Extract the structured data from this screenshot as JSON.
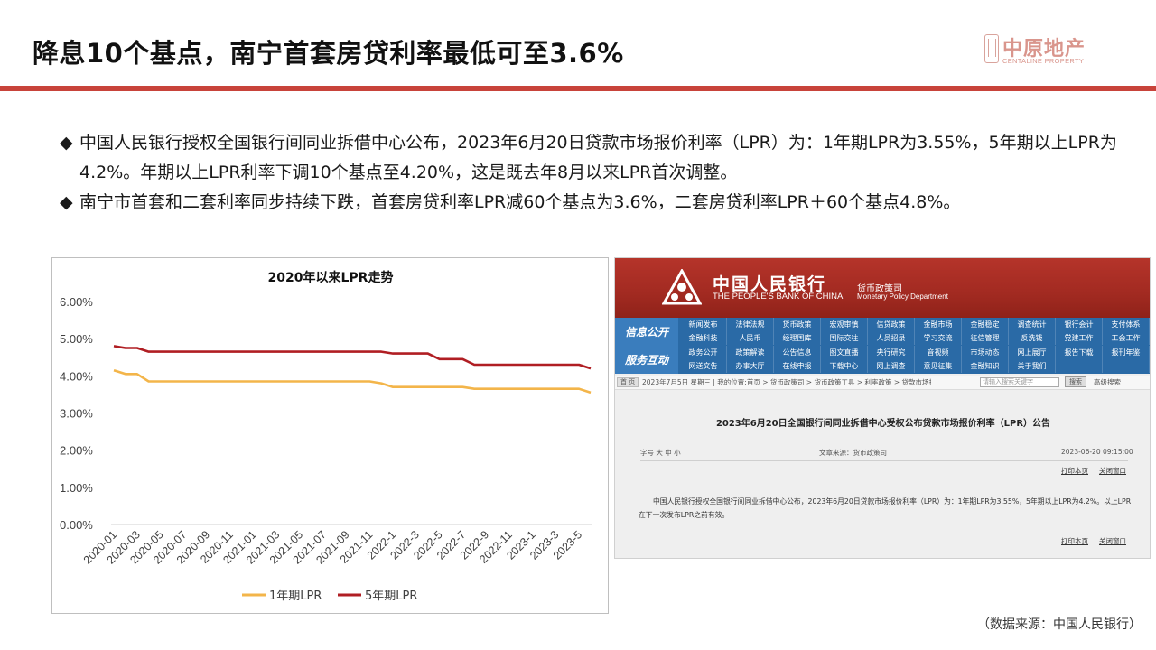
{
  "slide": {
    "title": "降息10个基点，南宁首套房贷利率最低可至3.6%",
    "logo_name": "中原地产",
    "logo_en": "CENTALINE PROPERTY",
    "source": "（数据来源：中国人民银行）"
  },
  "bullets": [
    {
      "mark": "◆",
      "text": "中国人民银行授权全国银行间同业拆借中心公布，2023年6月20日贷款市场报价利率（LPR）为：1年期LPR为3.55%，5年期以上LPR为4.2%。年期以上LPR利率下调10个基点至4.20%，这是既去年8月以来LPR首次调整。"
    },
    {
      "mark": "◆",
      "text": "南宁市首套和二套利率同步持续下跌，首套房贷利率LPR减60个基点为3.6%，二套房贷利率LPR＋60个基点4.8%。"
    }
  ],
  "chart_data": {
    "type": "line",
    "title": "2020年以来LPR走势",
    "xlabel": "",
    "ylabel": "",
    "ylim": [
      0,
      6
    ],
    "y_ticks": [
      "0.00%",
      "1.00%",
      "2.00%",
      "3.00%",
      "4.00%",
      "5.00%",
      "6.00%"
    ],
    "x_tick_labels": [
      "2020-01",
      "2020-03",
      "2020-05",
      "2020-07",
      "2020-09",
      "2020-11",
      "2021-01",
      "2021-03",
      "2021-05",
      "2021-07",
      "2021-09",
      "2021-11",
      "2022-1",
      "2022-3",
      "2022-5",
      "2022-7",
      "2022-9",
      "2022-11",
      "2023-1",
      "2023-3",
      "2023-5"
    ],
    "grid": false,
    "legend_position": "bottom",
    "x": [
      "2020-01",
      "2020-02",
      "2020-03",
      "2020-04",
      "2020-05",
      "2020-06",
      "2020-07",
      "2020-08",
      "2020-09",
      "2020-10",
      "2020-11",
      "2020-12",
      "2021-01",
      "2021-02",
      "2021-03",
      "2021-04",
      "2021-05",
      "2021-06",
      "2021-07",
      "2021-08",
      "2021-09",
      "2021-10",
      "2021-11",
      "2021-12",
      "2022-01",
      "2022-02",
      "2022-03",
      "2022-04",
      "2022-05",
      "2022-06",
      "2022-07",
      "2022-08",
      "2022-09",
      "2022-10",
      "2022-11",
      "2022-12",
      "2023-01",
      "2023-02",
      "2023-03",
      "2023-04",
      "2023-05",
      "2023-06"
    ],
    "series": [
      {
        "name": "1年期LPR",
        "color": "#f3b54a",
        "values": [
          4.15,
          4.05,
          4.05,
          3.85,
          3.85,
          3.85,
          3.85,
          3.85,
          3.85,
          3.85,
          3.85,
          3.85,
          3.85,
          3.85,
          3.85,
          3.85,
          3.85,
          3.85,
          3.85,
          3.85,
          3.85,
          3.85,
          3.85,
          3.8,
          3.7,
          3.7,
          3.7,
          3.7,
          3.7,
          3.7,
          3.7,
          3.65,
          3.65,
          3.65,
          3.65,
          3.65,
          3.65,
          3.65,
          3.65,
          3.65,
          3.65,
          3.55
        ]
      },
      {
        "name": "5年期LPR",
        "color": "#b01e23",
        "values": [
          4.8,
          4.75,
          4.75,
          4.65,
          4.65,
          4.65,
          4.65,
          4.65,
          4.65,
          4.65,
          4.65,
          4.65,
          4.65,
          4.65,
          4.65,
          4.65,
          4.65,
          4.65,
          4.65,
          4.65,
          4.65,
          4.65,
          4.65,
          4.65,
          4.6,
          4.6,
          4.6,
          4.6,
          4.45,
          4.45,
          4.45,
          4.3,
          4.3,
          4.3,
          4.3,
          4.3,
          4.3,
          4.3,
          4.3,
          4.3,
          4.3,
          4.2
        ]
      }
    ]
  },
  "screenshot": {
    "bank_cn": "中国人民银行",
    "bank_en": "THE PEOPLE'S BANK OF CHINA",
    "dept_cn": "货币政策司",
    "dept_en": "Monetary Policy Department",
    "nav_side_1": "信息公开",
    "nav_side_2": "服务互动",
    "nav_rows": [
      [
        "新闻发布",
        "法律法规",
        "货币政策",
        "宏观审慎",
        "信贷政策",
        "金融市场",
        "金融稳定",
        "调查统计",
        "银行会计",
        "支付体系"
      ],
      [
        "金融科技",
        "人民币",
        "经理国库",
        "国际交往",
        "人员招录",
        "学习交流",
        "征信管理",
        "反洗钱",
        "党建工作",
        "工会工作"
      ],
      [
        "政务公开",
        "政策解读",
        "公告信息",
        "图文直播",
        "央行研究",
        "音视频",
        "市场动态",
        "网上展厅",
        "报告下载",
        "报刊年鉴"
      ],
      [
        "网送文告",
        "办事大厅",
        "在线申报",
        "下载中心",
        "网上调查",
        "意见征集",
        "金融知识",
        "关于我们",
        "",
        ""
      ]
    ],
    "crumb_home": "首 页",
    "crumb_text": "2023年7月5日 星期三 | 我的位置:首页 > 货币政策司 > 货币政策工具 > 利率政策 > 贷款市场报价利率(LPR)",
    "search_placeholder": "请输入搜索关键字",
    "search_button": "搜索",
    "advanced_search": "高级搜索",
    "article_title": "2023年6月20日全国银行间同业拆借中心受权公布贷款市场报价利率（LPR）公告",
    "font_size_label": "字号 大 中 小",
    "article_source": "文章来源：货币政策司",
    "article_time": "2023-06-20 09:15:00",
    "print_link": "打印本页",
    "close_link": "关闭窗口",
    "article_body": "中国人民银行授权全国银行间同业拆借中心公布，2023年6月20日贷款市场报价利率（LPR）为：1年期LPR为3.55%，5年期以上LPR为4.2%。以上LPR在下一次发布LPR之前有效。"
  }
}
